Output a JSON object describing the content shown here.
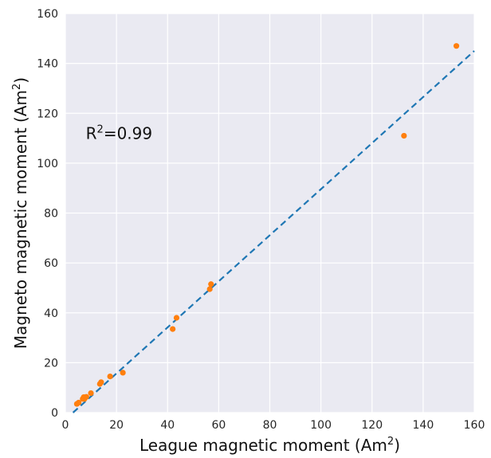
{
  "chart_data": {
    "type": "scatter",
    "xlabel": "League magnetic moment (Am",
    "xlabel_sup": "2",
    "xlabel_close": ")",
    "ylabel": "Magneto magnetic moment (Am",
    "ylabel_sup": "2",
    "ylabel_close": ")",
    "xlim": [
      0,
      160
    ],
    "ylim": [
      0,
      160
    ],
    "xticks": [
      0,
      20,
      40,
      60,
      80,
      100,
      120,
      140,
      160
    ],
    "yticks": [
      0,
      20,
      40,
      60,
      80,
      100,
      120,
      140,
      160
    ],
    "grid": true,
    "annotation": {
      "base": "R",
      "sup": "2",
      "rest": "=0.99",
      "x": 8,
      "y": 112
    },
    "fit_line": {
      "style": "dashed",
      "color": "#1f77b4",
      "points": [
        [
          3,
          0
        ],
        [
          160,
          145
        ]
      ]
    },
    "points": {
      "color": "#ff7f0e",
      "x": [
        4.5,
        5.2,
        6.8,
        7.2,
        7.5,
        8.2,
        10.0,
        13.5,
        14.0,
        17.5,
        22.5,
        42.0,
        43.5,
        56.5,
        57.0,
        132.5,
        153.0
      ],
      "y": [
        3.5,
        4.0,
        5.5,
        6.2,
        5.5,
        6.3,
        7.8,
        11.5,
        12.2,
        14.5,
        16.0,
        33.5,
        38.0,
        49.5,
        51.5,
        111.0,
        147.0
      ]
    },
    "colors": {
      "background": "#eaeaf2",
      "grid": "#ffffff"
    }
  }
}
